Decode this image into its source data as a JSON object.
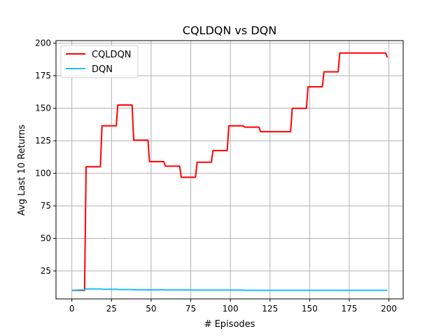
{
  "chart_data": {
    "type": "line",
    "title": "CQLDQN vs DQN",
    "xlabel": "# Episodes",
    "ylabel": "Avg Last 10 Returns",
    "xlim": [
      -10,
      209
    ],
    "ylim": [
      3.5,
      202
    ],
    "xticks": [
      0,
      25,
      50,
      75,
      100,
      125,
      150,
      175,
      200
    ],
    "yticks": [
      25,
      50,
      75,
      100,
      125,
      150,
      175,
      200
    ],
    "grid": true,
    "legend_position": "top-left",
    "series": [
      {
        "name": "CQLDQN",
        "color": "#ff0000",
        "points": [
          [
            0,
            10
          ],
          [
            8,
            10
          ],
          [
            9,
            105
          ],
          [
            18,
            105
          ],
          [
            19,
            136.5
          ],
          [
            28,
            136.5
          ],
          [
            29,
            152.5
          ],
          [
            38,
            152.5
          ],
          [
            39,
            125.5
          ],
          [
            48,
            125.5
          ],
          [
            49,
            109
          ],
          [
            58,
            109
          ],
          [
            59,
            105.5
          ],
          [
            68,
            105.5
          ],
          [
            69,
            97
          ],
          [
            78,
            97
          ],
          [
            79,
            108.5
          ],
          [
            88,
            108.5
          ],
          [
            89,
            117.5
          ],
          [
            98,
            117.5
          ],
          [
            99,
            136.5
          ],
          [
            108,
            136.5
          ],
          [
            109,
            135.5
          ],
          [
            118,
            135.5
          ],
          [
            119,
            132
          ],
          [
            138,
            132
          ],
          [
            139,
            150
          ],
          [
            148,
            150
          ],
          [
            149,
            166.5
          ],
          [
            158,
            166.5
          ],
          [
            159,
            178
          ],
          [
            168,
            178
          ],
          [
            169,
            192.5
          ],
          [
            198,
            192.5
          ],
          [
            199,
            189
          ]
        ]
      },
      {
        "name": "DQN",
        "color": "#1ebcff",
        "points": [
          [
            0,
            10
          ],
          [
            8,
            10.5
          ],
          [
            9,
            11.2
          ],
          [
            18,
            11.2
          ],
          [
            19,
            10.9
          ],
          [
            28,
            10.9
          ],
          [
            29,
            10.7
          ],
          [
            38,
            10.7
          ],
          [
            39,
            10.5
          ],
          [
            58,
            10.5
          ],
          [
            59,
            10.4
          ],
          [
            78,
            10.4
          ],
          [
            79,
            10.3
          ],
          [
            108,
            10.3
          ],
          [
            109,
            10.1
          ],
          [
            199,
            10.1
          ]
        ]
      }
    ]
  }
}
